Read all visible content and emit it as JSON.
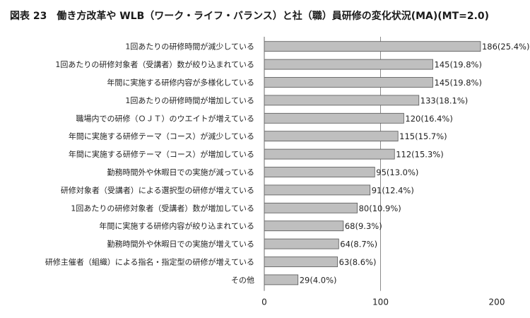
{
  "chart_data": {
    "type": "bar",
    "orientation": "horizontal",
    "title": "図表 23　働き方改革や WLB（ワーク・ライフ・バランス）と社（職）員研修の変化状況(MA)(MT=2.0)",
    "xlabel": "",
    "ylabel": "",
    "xlim": [
      0,
      200
    ],
    "xticks": [
      0,
      100,
      200
    ],
    "gridlines_x": [
      100
    ],
    "bar_color": "#bfbfbf",
    "bar_border": "#555555",
    "categories": [
      "1回あたりの研修時間が減少している",
      "1回あたりの研修対象者（受講者）数が絞り込まれている",
      "年間に実施する研修内容が多様化している",
      "1回あたりの研修時間が増加している",
      "職場内での研修（ＯＪＴ）のウエイトが増えている",
      "年間に実施する研修テーマ（コース）が減少している",
      "年間に実施する研修テーマ（コース）が増加している",
      "勤務時間外や休暇日での実施が減っている",
      "研修対象者（受講者）による選択型の研修が増えている",
      "1回あたりの研修対象者（受講者）数が増加している",
      "年間に実施する研修内容が絞り込まれている",
      "勤務時間外や休暇日での実施が増えている",
      "研修主催者（組織）による指名・指定型の研修が増えている",
      "その他"
    ],
    "values": [
      186,
      145,
      145,
      133,
      120,
      115,
      112,
      95,
      91,
      80,
      68,
      64,
      63,
      29
    ],
    "value_labels": [
      "186(25.4%)",
      "145(19.8%)",
      "145(19.8%)",
      "133(18.1%)",
      "120(16.4%)",
      "115(15.7%)",
      "112(15.3%)",
      "95(13.0%)",
      "91(12.4%)",
      "80(10.9%)",
      "68(9.3%)",
      "64(8.7%)",
      "63(8.6%)",
      "29(4.0%)"
    ]
  }
}
